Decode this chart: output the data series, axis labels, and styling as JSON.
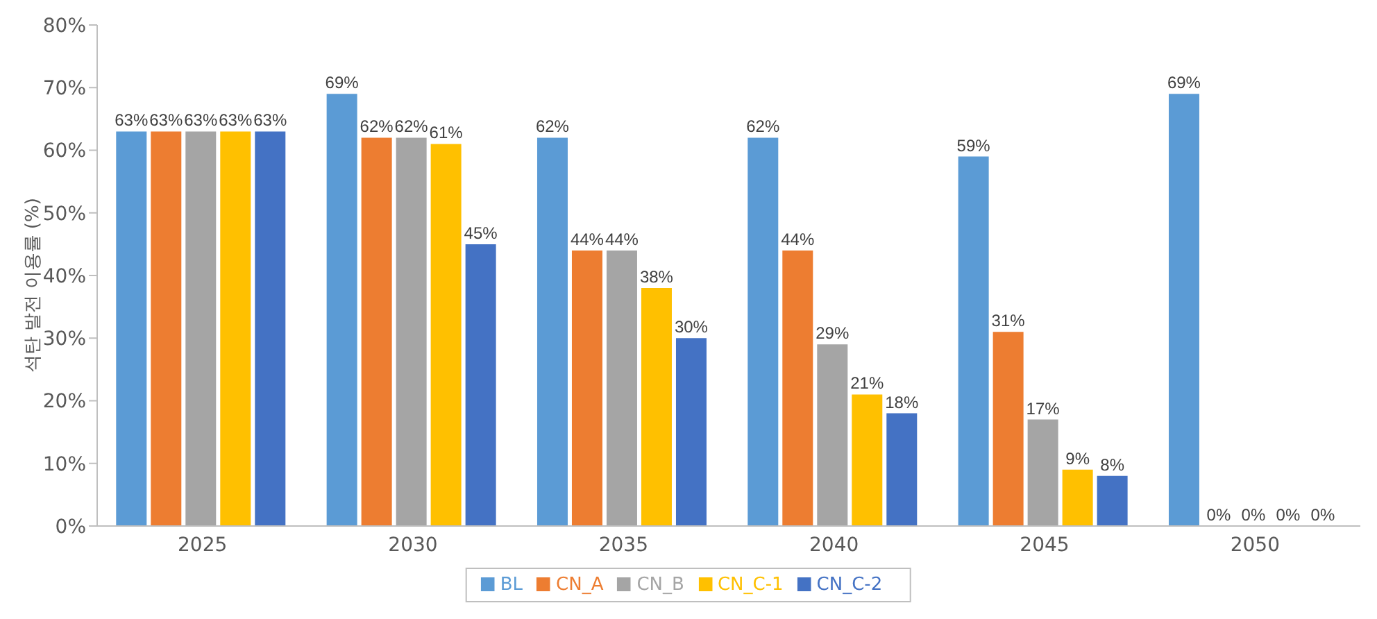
{
  "chart_data": {
    "type": "bar",
    "ylabel": "석탄 발전 이용률 (%)",
    "categories": [
      "2025",
      "2030",
      "2035",
      "2040",
      "2045",
      "2050"
    ],
    "ylim": [
      0,
      80
    ],
    "yticks": [
      {
        "value": 0,
        "label": "0%"
      },
      {
        "value": 10,
        "label": "10%"
      },
      {
        "value": 20,
        "label": "20%"
      },
      {
        "value": 30,
        "label": "30%"
      },
      {
        "value": 40,
        "label": "40%"
      },
      {
        "value": 50,
        "label": "50%"
      },
      {
        "value": 60,
        "label": "60%"
      },
      {
        "value": 70,
        "label": "70%"
      },
      {
        "value": 80,
        "label": "80%"
      }
    ],
    "grid": false,
    "legend": "bottom",
    "series": [
      {
        "name": "BL",
        "color": "#5b9bd5",
        "values": [
          63,
          69,
          62,
          62,
          59,
          69
        ],
        "value_labels": [
          "63%",
          "69%",
          "62%",
          "62%",
          "59%",
          "69%"
        ]
      },
      {
        "name": "CN_A",
        "color": "#ed7d31",
        "values": [
          63,
          62,
          44,
          44,
          31,
          0
        ],
        "value_labels": [
          "63%",
          "62%",
          "44%",
          "44%",
          "31%",
          "0%"
        ]
      },
      {
        "name": "CN_B",
        "color": "#a5a5a5",
        "values": [
          63,
          62,
          44,
          29,
          17,
          0
        ],
        "value_labels": [
          "63%",
          "62%",
          "44%",
          "29%",
          "17%",
          "0%"
        ]
      },
      {
        "name": "CN_C-1",
        "color": "#ffc000",
        "values": [
          63,
          61,
          38,
          21,
          9,
          0
        ],
        "value_labels": [
          "63%",
          "61%",
          "38%",
          "21%",
          "9%",
          "0%"
        ]
      },
      {
        "name": "CN_C-2",
        "color": "#4472c4",
        "values": [
          63,
          45,
          30,
          18,
          8,
          0
        ],
        "value_labels": [
          "63%",
          "45%",
          "30%",
          "18%",
          "8%",
          "0%"
        ]
      }
    ]
  }
}
